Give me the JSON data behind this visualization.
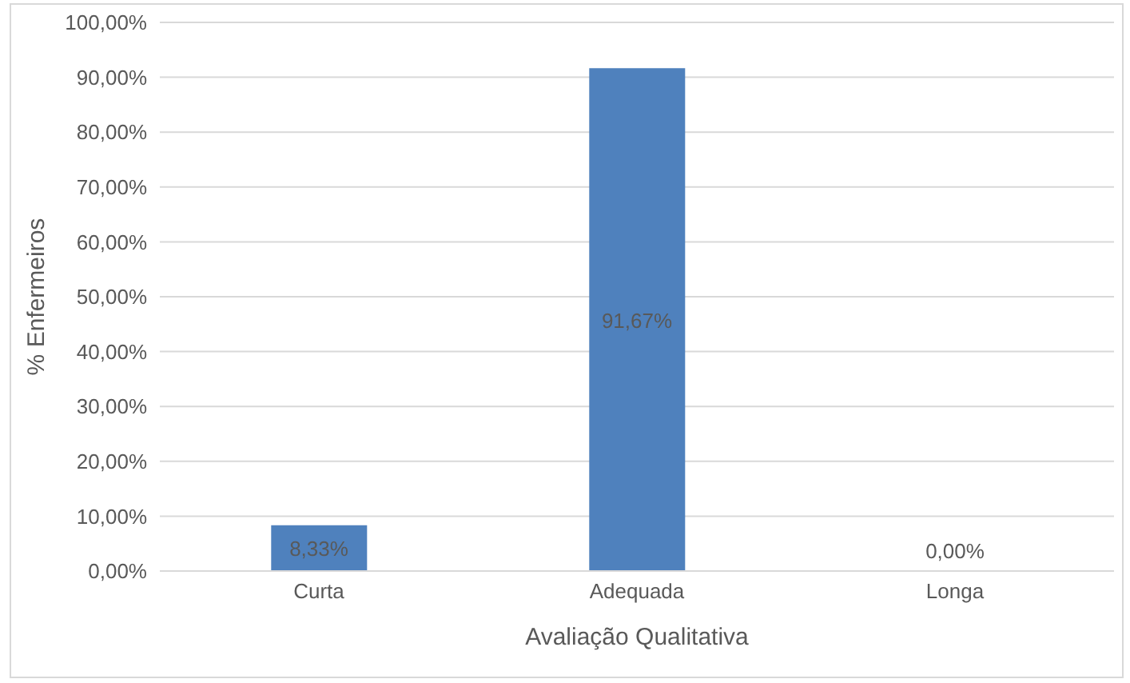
{
  "chart_data": {
    "type": "bar",
    "xlabel": "Avaliação Qualitativa",
    "ylabel": "% Enfermeiros",
    "categories": [
      "Curta",
      "Adequada",
      "Longa"
    ],
    "values": [
      8.33,
      91.67,
      0
    ],
    "value_labels": [
      "8,33%",
      "91,67%",
      "0,00%"
    ],
    "color": "#4f81bd",
    "ylim": [
      0,
      100
    ],
    "yticks": [
      {
        "value": 0,
        "label": "0,00%"
      },
      {
        "value": 10,
        "label": "10,00%"
      },
      {
        "value": 20,
        "label": "20,00%"
      },
      {
        "value": 30,
        "label": "30,00%"
      },
      {
        "value": 40,
        "label": "40,00%"
      },
      {
        "value": 50,
        "label": "50,00%"
      },
      {
        "value": 60,
        "label": "60,00%"
      },
      {
        "value": 70,
        "label": "70,00%"
      },
      {
        "value": 80,
        "label": "80,00%"
      },
      {
        "value": 90,
        "label": "90,00%"
      },
      {
        "value": 100,
        "label": "100,00%"
      }
    ],
    "grid": "y",
    "legend": false
  }
}
